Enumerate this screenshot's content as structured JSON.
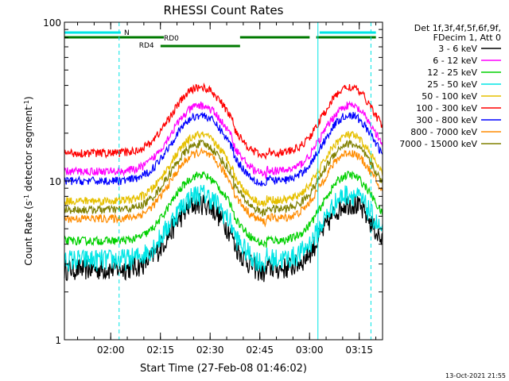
{
  "chart_data": {
    "type": "line",
    "title": "RHESSI Count Rates",
    "xlabel": "Start Time (27-Feb-08 01:46:02)",
    "ylabel_parts": [
      "Count Rate (s",
      "-1",
      " detector segment",
      "-1",
      ")"
    ],
    "yscale": "log",
    "ylim": [
      1,
      100
    ],
    "xlim_minutes": [
      0,
      96
    ],
    "x_ticks": [
      "02:00",
      "02:15",
      "02:30",
      "02:45",
      "03:00",
      "03:15"
    ],
    "y_ticks": [
      "1",
      "10",
      "100"
    ],
    "grid": false,
    "legend_header": [
      "Det 1f,3f,4f,5f,6f,9f,",
      "FDecim 1, Att 0"
    ],
    "legend_position": "right",
    "series": [
      {
        "name": "3 - 6 keV",
        "color": "#000000",
        "base": 2.8
      },
      {
        "name": "6 - 12 keV",
        "color": "#ff00ff",
        "base": 11.5
      },
      {
        "name": "12 - 25 keV",
        "color": "#00d000",
        "base": 4.2
      },
      {
        "name": "25 - 50 keV",
        "color": "#00e5e5",
        "base": 3.2
      },
      {
        "name": "50 - 100 keV",
        "color": "#e6c000",
        "base": 7.5
      },
      {
        "name": "100 - 300 keV",
        "color": "#ff0000",
        "base": 15
      },
      {
        "name": "300 - 800 keV",
        "color": "#0000ff",
        "base": 10
      },
      {
        "name": "800 - 7000 keV",
        "color": "#ff8c00",
        "base": 5.8
      },
      {
        "name": "7000 - 15000 keV",
        "color": "#808000",
        "base": 6.6
      }
    ],
    "modulation": {
      "peak_minutes": [
        41,
        86
      ],
      "peak_factor": 2.6,
      "dip_minutes": 56
    },
    "attenuator_bars": {
      "N": {
        "color": "#00e5e5",
        "segments_minutes": [
          [
            0,
            17
          ],
          [
            77,
            94
          ]
        ]
      },
      "RD0": {
        "color": "#007a00",
        "segments_minutes": [
          [
            0,
            30
          ],
          [
            53,
            74
          ],
          [
            76,
            94
          ]
        ]
      },
      "RD4": {
        "color": "#007a00",
        "segments_minutes": [
          [
            29,
            53
          ]
        ]
      }
    },
    "event_lines_minutes": [
      {
        "t": 16.5,
        "style": "dashed",
        "color": "#00e5e5"
      },
      {
        "t": 76.5,
        "style": "solid",
        "color": "#00e5e5"
      },
      {
        "t": 92.5,
        "style": "dashed",
        "color": "#00e5e5"
      }
    ]
  },
  "footer": {
    "timestamp": "13-Oct-2021 21:55"
  }
}
